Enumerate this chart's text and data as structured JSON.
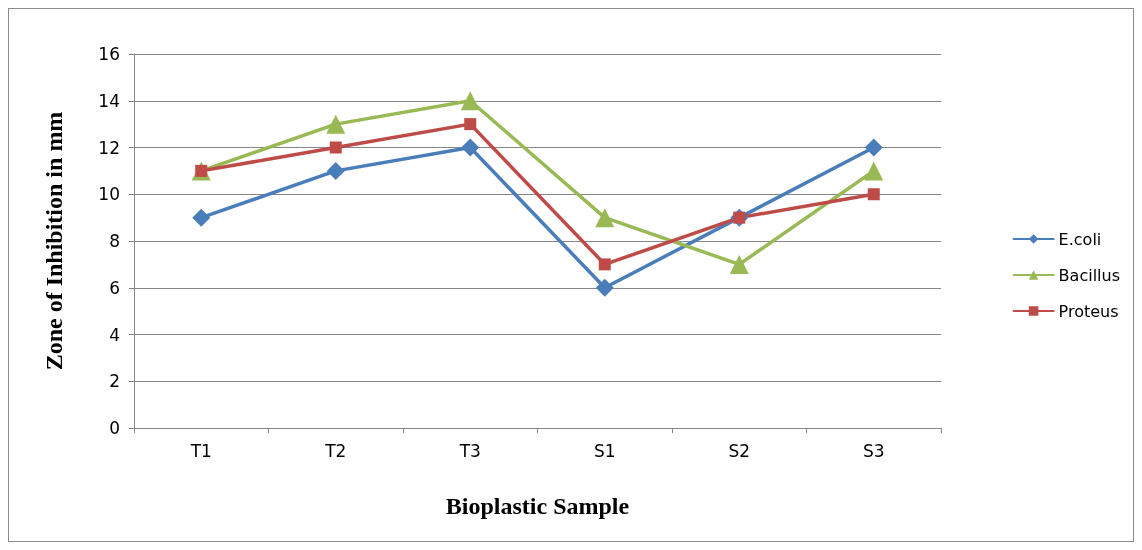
{
  "chart_data": {
    "type": "line",
    "xlabel": "Bioplastic Sample",
    "ylabel": "Zone of Inhibition in mm",
    "categories": [
      "T1",
      "T2",
      "T3",
      "S1",
      "S2",
      "S3"
    ],
    "series": [
      {
        "name": "E.coli",
        "color": "#4a7ebb",
        "marker": "diamond",
        "values": [
          9,
          11,
          12,
          6,
          9,
          12
        ]
      },
      {
        "name": "Bacillus",
        "color": "#98b954",
        "marker": "triangle",
        "values": [
          11,
          13,
          14,
          9,
          7,
          11
        ]
      },
      {
        "name": "Proteus",
        "color": "#be4b48",
        "marker": "square",
        "values": [
          11,
          12,
          13,
          7,
          9,
          10
        ]
      }
    ],
    "ylim": [
      0,
      16
    ],
    "yticks": [
      0,
      2,
      4,
      6,
      8,
      10,
      12,
      14,
      16
    ],
    "grid": "y",
    "legend": "right",
    "line_style": "solid"
  }
}
